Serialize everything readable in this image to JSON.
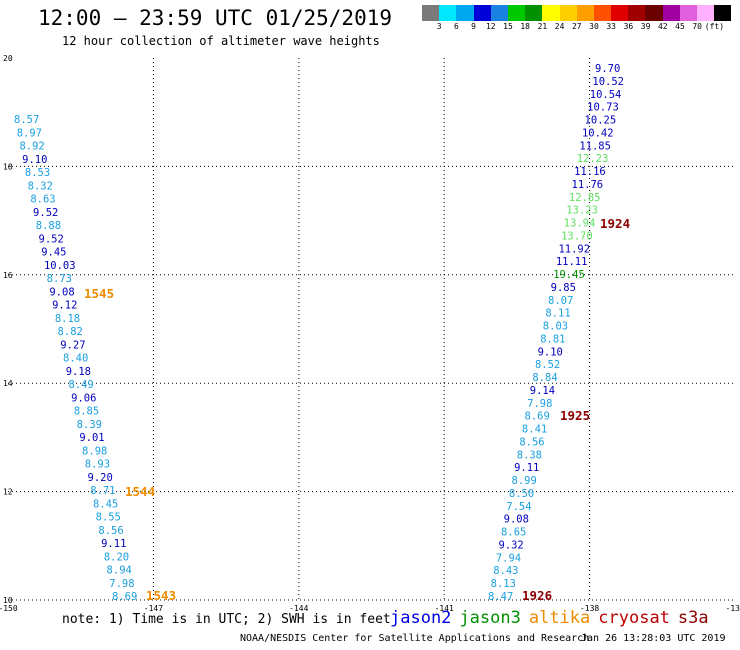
{
  "title": "12:00 – 23:59 UTC 01/25/2019",
  "subtitle": "12 hour collection of altimeter wave heights",
  "colorscale": {
    "colors": [
      "#7a7a7a",
      "#00e8ff",
      "#00a8f0",
      "#0000d8",
      "#1a82e0",
      "#00c800",
      "#009000",
      "#ffff00",
      "#ffd000",
      "#ffa000",
      "#ff5000",
      "#e00000",
      "#a00000",
      "#6a0000",
      "#a000a0",
      "#e060e0",
      "#ffb0ff",
      "#000000"
    ],
    "labels": [
      "3",
      "6",
      "9",
      "12",
      "15",
      "18",
      "21",
      "24",
      "27",
      "30",
      "33",
      "36",
      "39",
      "42",
      "45",
      "70",
      "(ft)"
    ]
  },
  "axes": {
    "x_ticks": [
      "-150",
      "-147",
      "-144",
      "-141",
      "-138",
      "-13"
    ],
    "y_ticks": [
      "20",
      "18",
      "16",
      "14",
      "12",
      "10"
    ]
  },
  "track_west": [
    {
      "v": "8.57",
      "c": "#1aa0e0"
    },
    {
      "v": "8.97",
      "c": "#1aa0e0"
    },
    {
      "v": "8.92",
      "c": "#1aa0e0"
    },
    {
      "v": "9.10",
      "c": "#0000c0"
    },
    {
      "v": "8.53",
      "c": "#1aa0e0"
    },
    {
      "v": "8.32",
      "c": "#1aa0e0"
    },
    {
      "v": "8.63",
      "c": "#1aa0e0"
    },
    {
      "v": "9.52",
      "c": "#0000c0"
    },
    {
      "v": "8.88",
      "c": "#1aa0e0"
    },
    {
      "v": "9.52",
      "c": "#0000c0"
    },
    {
      "v": "9.45",
      "c": "#0000c0"
    },
    {
      "v": "10.03",
      "c": "#0000c0"
    },
    {
      "v": "8.73",
      "c": "#1aa0e0"
    },
    {
      "v": "9.08",
      "c": "#0000c0"
    },
    {
      "v": "9.12",
      "c": "#0000c0"
    },
    {
      "v": "8.18",
      "c": "#1aa0e0"
    },
    {
      "v": "8.82",
      "c": "#1aa0e0"
    },
    {
      "v": "9.27",
      "c": "#0000c0"
    },
    {
      "v": "8.40",
      "c": "#1aa0e0"
    },
    {
      "v": "9.18",
      "c": "#0000c0"
    },
    {
      "v": "8.49",
      "c": "#1aa0e0"
    },
    {
      "v": "9.06",
      "c": "#0000c0"
    },
    {
      "v": "8.85",
      "c": "#1aa0e0"
    },
    {
      "v": "8.39",
      "c": "#1aa0e0"
    },
    {
      "v": "9.01",
      "c": "#0000c0"
    },
    {
      "v": "8.98",
      "c": "#1aa0e0"
    },
    {
      "v": "8.93",
      "c": "#1aa0e0"
    },
    {
      "v": "9.20",
      "c": "#0000c0"
    },
    {
      "v": "8.71",
      "c": "#1aa0e0"
    },
    {
      "v": "8.45",
      "c": "#1aa0e0"
    },
    {
      "v": "8.55",
      "c": "#1aa0e0"
    },
    {
      "v": "8.56",
      "c": "#1aa0e0"
    },
    {
      "v": "9.11",
      "c": "#0000c0"
    },
    {
      "v": "8.20",
      "c": "#1aa0e0"
    },
    {
      "v": "8.94",
      "c": "#1aa0e0"
    },
    {
      "v": "7.98",
      "c": "#1aa0e0"
    },
    {
      "v": "8.69",
      "c": "#1aa0e0"
    }
  ],
  "track_east": [
    {
      "v": "9.70",
      "c": "#0000c0"
    },
    {
      "v": "10.52",
      "c": "#0000c0"
    },
    {
      "v": "10.54",
      "c": "#0000c0"
    },
    {
      "v": "10.73",
      "c": "#0000c0"
    },
    {
      "v": "10.25",
      "c": "#0000c0"
    },
    {
      "v": "10.42",
      "c": "#0000c0"
    },
    {
      "v": "11.85",
      "c": "#0000c0"
    },
    {
      "v": "12.23",
      "c": "#60e060"
    },
    {
      "v": "11.16",
      "c": "#0000c0"
    },
    {
      "v": "11.76",
      "c": "#0000c0"
    },
    {
      "v": "12.85",
      "c": "#60e060"
    },
    {
      "v": "13.23",
      "c": "#60e060"
    },
    {
      "v": "13.94",
      "c": "#60e060"
    },
    {
      "v": "13.70",
      "c": "#60e060"
    },
    {
      "v": "11.92",
      "c": "#0000c0"
    },
    {
      "v": "11.11",
      "c": "#0000c0"
    },
    {
      "v": "19.45",
      "c": "#009000"
    },
    {
      "v": "9.85",
      "c": "#0000c0"
    },
    {
      "v": "8.07",
      "c": "#1aa0e0"
    },
    {
      "v": "8.11",
      "c": "#1aa0e0"
    },
    {
      "v": "8.03",
      "c": "#1aa0e0"
    },
    {
      "v": "8.81",
      "c": "#1aa0e0"
    },
    {
      "v": "9.10",
      "c": "#0000c0"
    },
    {
      "v": "8.52",
      "c": "#1aa0e0"
    },
    {
      "v": "8.84",
      "c": "#1aa0e0"
    },
    {
      "v": "9.14",
      "c": "#0000c0"
    },
    {
      "v": "7.98",
      "c": "#1aa0e0"
    },
    {
      "v": "8.69",
      "c": "#1aa0e0"
    },
    {
      "v": "8.41",
      "c": "#1aa0e0"
    },
    {
      "v": "8.56",
      "c": "#1aa0e0"
    },
    {
      "v": "8.38",
      "c": "#1aa0e0"
    },
    {
      "v": "9.11",
      "c": "#0000c0"
    },
    {
      "v": "8.99",
      "c": "#1aa0e0"
    },
    {
      "v": "8.50",
      "c": "#1aa0e0"
    },
    {
      "v": "7.54",
      "c": "#1aa0e0"
    },
    {
      "v": "9.08",
      "c": "#0000c0"
    },
    {
      "v": "8.65",
      "c": "#1aa0e0"
    },
    {
      "v": "9.32",
      "c": "#0000c0"
    },
    {
      "v": "7.94",
      "c": "#1aa0e0"
    },
    {
      "v": "8.43",
      "c": "#1aa0e0"
    },
    {
      "v": "8.13",
      "c": "#1aa0e0"
    },
    {
      "v": "8.47",
      "c": "#1aa0e0"
    }
  ],
  "time_labels": [
    {
      "t": "1545",
      "c": "#f08c00"
    },
    {
      "t": "1544",
      "c": "#f08c00"
    },
    {
      "t": "1543",
      "c": "#f08c00"
    },
    {
      "t": "1924",
      "c": "#8b0000"
    },
    {
      "t": "1925",
      "c": "#8b0000"
    },
    {
      "t": "1926",
      "c": "#8b0000"
    }
  ],
  "note": "note: 1) Time is in UTC; 2) SWH is in feet",
  "satellites": [
    {
      "name": "jason2",
      "c": "#0000e0"
    },
    {
      "name": "jason3",
      "c": "#009000"
    },
    {
      "name": "altika",
      "c": "#f08c00"
    },
    {
      "name": "cryosat",
      "c": "#c00000"
    },
    {
      "name": "s3a",
      "c": "#8b0000"
    }
  ],
  "credit": "NOAA/NESDIS Center for Satellite Applications and Research",
  "timestamp": "Jan 26 13:28:03 UTC 2019"
}
